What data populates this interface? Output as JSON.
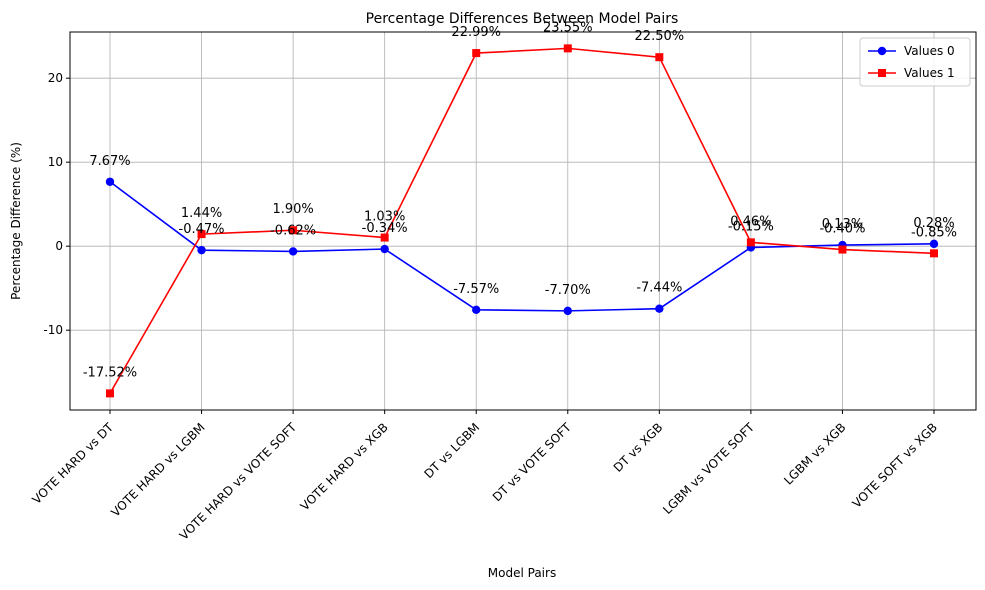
{
  "chart_data": {
    "type": "line",
    "title": "Percentage Differences Between Model Pairs",
    "xlabel": "Model Pairs",
    "ylabel": "Percentage Difference (%)",
    "categories": [
      "VOTE HARD vs DT",
      "VOTE HARD vs LGBM",
      "VOTE HARD vs VOTE SOFT",
      "VOTE HARD vs XGB",
      "DT vs LGBM",
      "DT vs VOTE SOFT",
      "DT vs XGB",
      "LGBM vs VOTE SOFT",
      "LGBM vs XGB",
      "VOTE SOFT vs XGB"
    ],
    "series": [
      {
        "name": "Values 0",
        "color": "#0000ff",
        "marker": "circle",
        "values": [
          7.67,
          -0.47,
          -0.62,
          -0.34,
          -7.57,
          -7.7,
          -7.44,
          -0.15,
          0.13,
          0.28
        ],
        "labels": [
          "7.67%",
          "-0.47%",
          "-0.62%",
          "-0.34%",
          "-7.57%",
          "-7.70%",
          "-7.44%",
          "-0.15%",
          "0.13%",
          "0.28%"
        ]
      },
      {
        "name": "Values 1",
        "color": "#ff0000",
        "marker": "square",
        "values": [
          -17.52,
          1.44,
          1.9,
          1.03,
          22.99,
          23.55,
          22.5,
          0.46,
          -0.4,
          -0.85
        ],
        "labels": [
          "-17.52%",
          "1.44%",
          "1.90%",
          "1.03%",
          "22.99%",
          "23.55%",
          "22.50%",
          "0.46%",
          "-0.40%",
          "-0.85%"
        ]
      }
    ],
    "ylim": [
      -19.5,
      25.5
    ],
    "yticks": [
      -10,
      0,
      10,
      20
    ],
    "grid": true,
    "legend": "top-right"
  }
}
